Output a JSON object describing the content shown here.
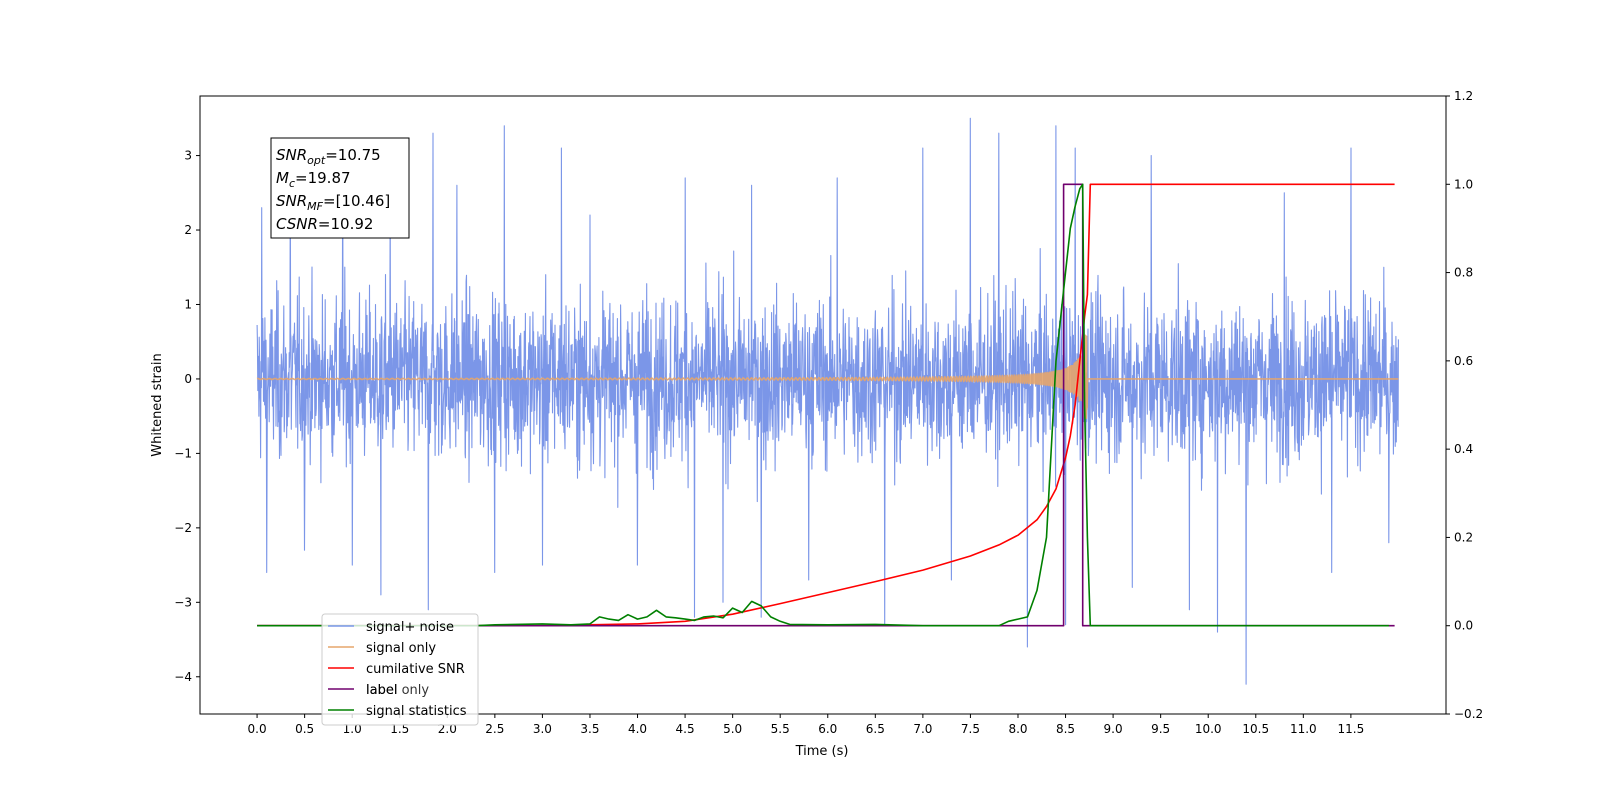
{
  "chart_data": {
    "type": "line",
    "title": "",
    "xlabel": "Time (s)",
    "ylabel": "Whitened strain",
    "y2label": "",
    "xlim": [
      -0.6,
      12.5
    ],
    "ylim": [
      -4.5,
      3.8
    ],
    "y2lim": [
      -0.2,
      1.2
    ],
    "xticks": [
      "0.0",
      "0.5",
      "1.0",
      "1.5",
      "2.0",
      "2.5",
      "3.0",
      "3.5",
      "4.0",
      "4.5",
      "5.0",
      "5.5",
      "6.0",
      "6.5",
      "7.0",
      "7.5",
      "8.0",
      "8.5",
      "9.0",
      "9.5",
      "10.0",
      "10.5",
      "11.0",
      "11.5"
    ],
    "yticks": [
      "3",
      "2",
      "1",
      "0",
      "−1",
      "−2",
      "−3",
      "−4"
    ],
    "y2ticks": [
      "1.2",
      "1.0",
      "0.8",
      "0.6",
      "0.4",
      "0.2",
      "0.0",
      "−0.2"
    ],
    "grid": false,
    "legend_position": "lower-left",
    "annotation": {
      "lines": [
        {
          "base": "SNR",
          "sub": "opt",
          "value": "=10.75"
        },
        {
          "base": "M",
          "sub": "c",
          "value": "=19.87"
        },
        {
          "base": "SNR",
          "sub": "MF",
          "value": "=[10.46]"
        },
        {
          "base": "CSNR",
          "sub": "",
          "value": "=10.92"
        }
      ]
    },
    "series": [
      {
        "name": "signal+ noise",
        "color": "#7b96e8",
        "axis": "left",
        "kind": "noise",
        "x_range": [
          0.0,
          12.0
        ],
        "envelope": 1.9,
        "spikes": [
          [
            0.05,
            2.3
          ],
          [
            0.35,
            2.8
          ],
          [
            0.9,
            2.9
          ],
          [
            1.4,
            2.5
          ],
          [
            1.85,
            3.3
          ],
          [
            2.1,
            2.6
          ],
          [
            2.6,
            3.4
          ],
          [
            3.2,
            3.1
          ],
          [
            3.5,
            2.2
          ],
          [
            4.0,
            2.8
          ],
          [
            4.5,
            2.7
          ],
          [
            5.2,
            2.6
          ],
          [
            6.1,
            2.7
          ],
          [
            6.6,
            2.9
          ],
          [
            7.0,
            3.1
          ],
          [
            7.3,
            3.4
          ],
          [
            7.5,
            3.5
          ],
          [
            7.8,
            3.3
          ],
          [
            8.1,
            3.4
          ],
          [
            8.4,
            3.4
          ],
          [
            8.6,
            3.1
          ],
          [
            9.4,
            3.0
          ],
          [
            10.1,
            3.1
          ],
          [
            10.8,
            2.5
          ],
          [
            11.5,
            3.1
          ],
          [
            0.1,
            -2.6
          ],
          [
            0.5,
            -2.3
          ],
          [
            1.0,
            -2.5
          ],
          [
            1.3,
            -2.9
          ],
          [
            1.8,
            -3.1
          ],
          [
            2.5,
            -2.6
          ],
          [
            3.0,
            -2.5
          ],
          [
            4.0,
            -2.5
          ],
          [
            4.6,
            -3.2
          ],
          [
            4.9,
            -3.0
          ],
          [
            5.3,
            -3.2
          ],
          [
            5.8,
            -2.7
          ],
          [
            6.6,
            -3.3
          ],
          [
            7.3,
            -2.7
          ],
          [
            8.1,
            -3.6
          ],
          [
            8.5,
            -3.3
          ],
          [
            9.2,
            -2.8
          ],
          [
            9.8,
            -3.1
          ],
          [
            10.1,
            -3.4
          ],
          [
            10.4,
            -4.1
          ],
          [
            11.3,
            -2.6
          ],
          [
            11.9,
            -2.2
          ]
        ]
      },
      {
        "name": "signal only",
        "color": "#e6a56b",
        "axis": "left",
        "kind": "chirp",
        "x_range": [
          0.0,
          12.0
        ],
        "merger_time": 8.73,
        "peak_amplitude": 1.0
      },
      {
        "name": "cumilative SNR",
        "color": "#ff0000",
        "axis": "right",
        "kind": "line",
        "x": [
          0.0,
          3.0,
          4.0,
          4.5,
          5.0,
          5.5,
          6.0,
          6.5,
          7.0,
          7.5,
          7.8,
          8.0,
          8.2,
          8.3,
          8.4,
          8.5,
          8.55,
          8.6,
          8.65,
          8.7,
          8.73,
          8.76,
          11.96
        ],
        "y": [
          0.0,
          0.0,
          0.004,
          0.01,
          0.026,
          0.05,
          0.075,
          0.1,
          0.126,
          0.158,
          0.183,
          0.205,
          0.24,
          0.27,
          0.31,
          0.38,
          0.43,
          0.5,
          0.6,
          0.7,
          0.75,
          1.0,
          1.0
        ]
      },
      {
        "name": "label",
        "color": "#70006e",
        "axis": "right",
        "kind": "line",
        "x": [
          0.0,
          8.48,
          8.48,
          8.68,
          8.68,
          11.96
        ],
        "y": [
          0.0,
          0.0,
          1.0,
          1.0,
          0.0,
          0.0
        ]
      },
      {
        "name": "label only",
        "color": "",
        "axis": "right",
        "kind": "hidden",
        "x": [],
        "y": []
      },
      {
        "name": "signal statistics",
        "color": "#008000",
        "axis": "right",
        "kind": "line",
        "x": [
          0.0,
          2.3,
          2.5,
          3.0,
          3.3,
          3.5,
          3.6,
          3.7,
          3.8,
          3.9,
          4.0,
          4.1,
          4.2,
          4.3,
          4.4,
          4.5,
          4.6,
          4.7,
          4.8,
          4.9,
          5.0,
          5.1,
          5.2,
          5.3,
          5.4,
          5.5,
          5.6,
          6.0,
          6.5,
          7.0,
          7.8,
          7.9,
          8.0,
          8.1,
          8.2,
          8.3,
          8.4,
          8.5,
          8.55,
          8.6,
          8.65,
          8.68,
          8.7,
          8.73,
          8.76,
          11.9
        ],
        "y": [
          0.0,
          0.0,
          0.002,
          0.004,
          0.002,
          0.004,
          0.02,
          0.015,
          0.012,
          0.025,
          0.015,
          0.02,
          0.035,
          0.02,
          0.018,
          0.015,
          0.012,
          0.02,
          0.022,
          0.018,
          0.04,
          0.03,
          0.055,
          0.045,
          0.02,
          0.01,
          0.003,
          0.002,
          0.003,
          0.0,
          0.0,
          0.01,
          0.015,
          0.02,
          0.08,
          0.2,
          0.6,
          0.8,
          0.9,
          0.95,
          0.99,
          1.0,
          0.5,
          0.2,
          0.0,
          0.0
        ]
      }
    ]
  }
}
